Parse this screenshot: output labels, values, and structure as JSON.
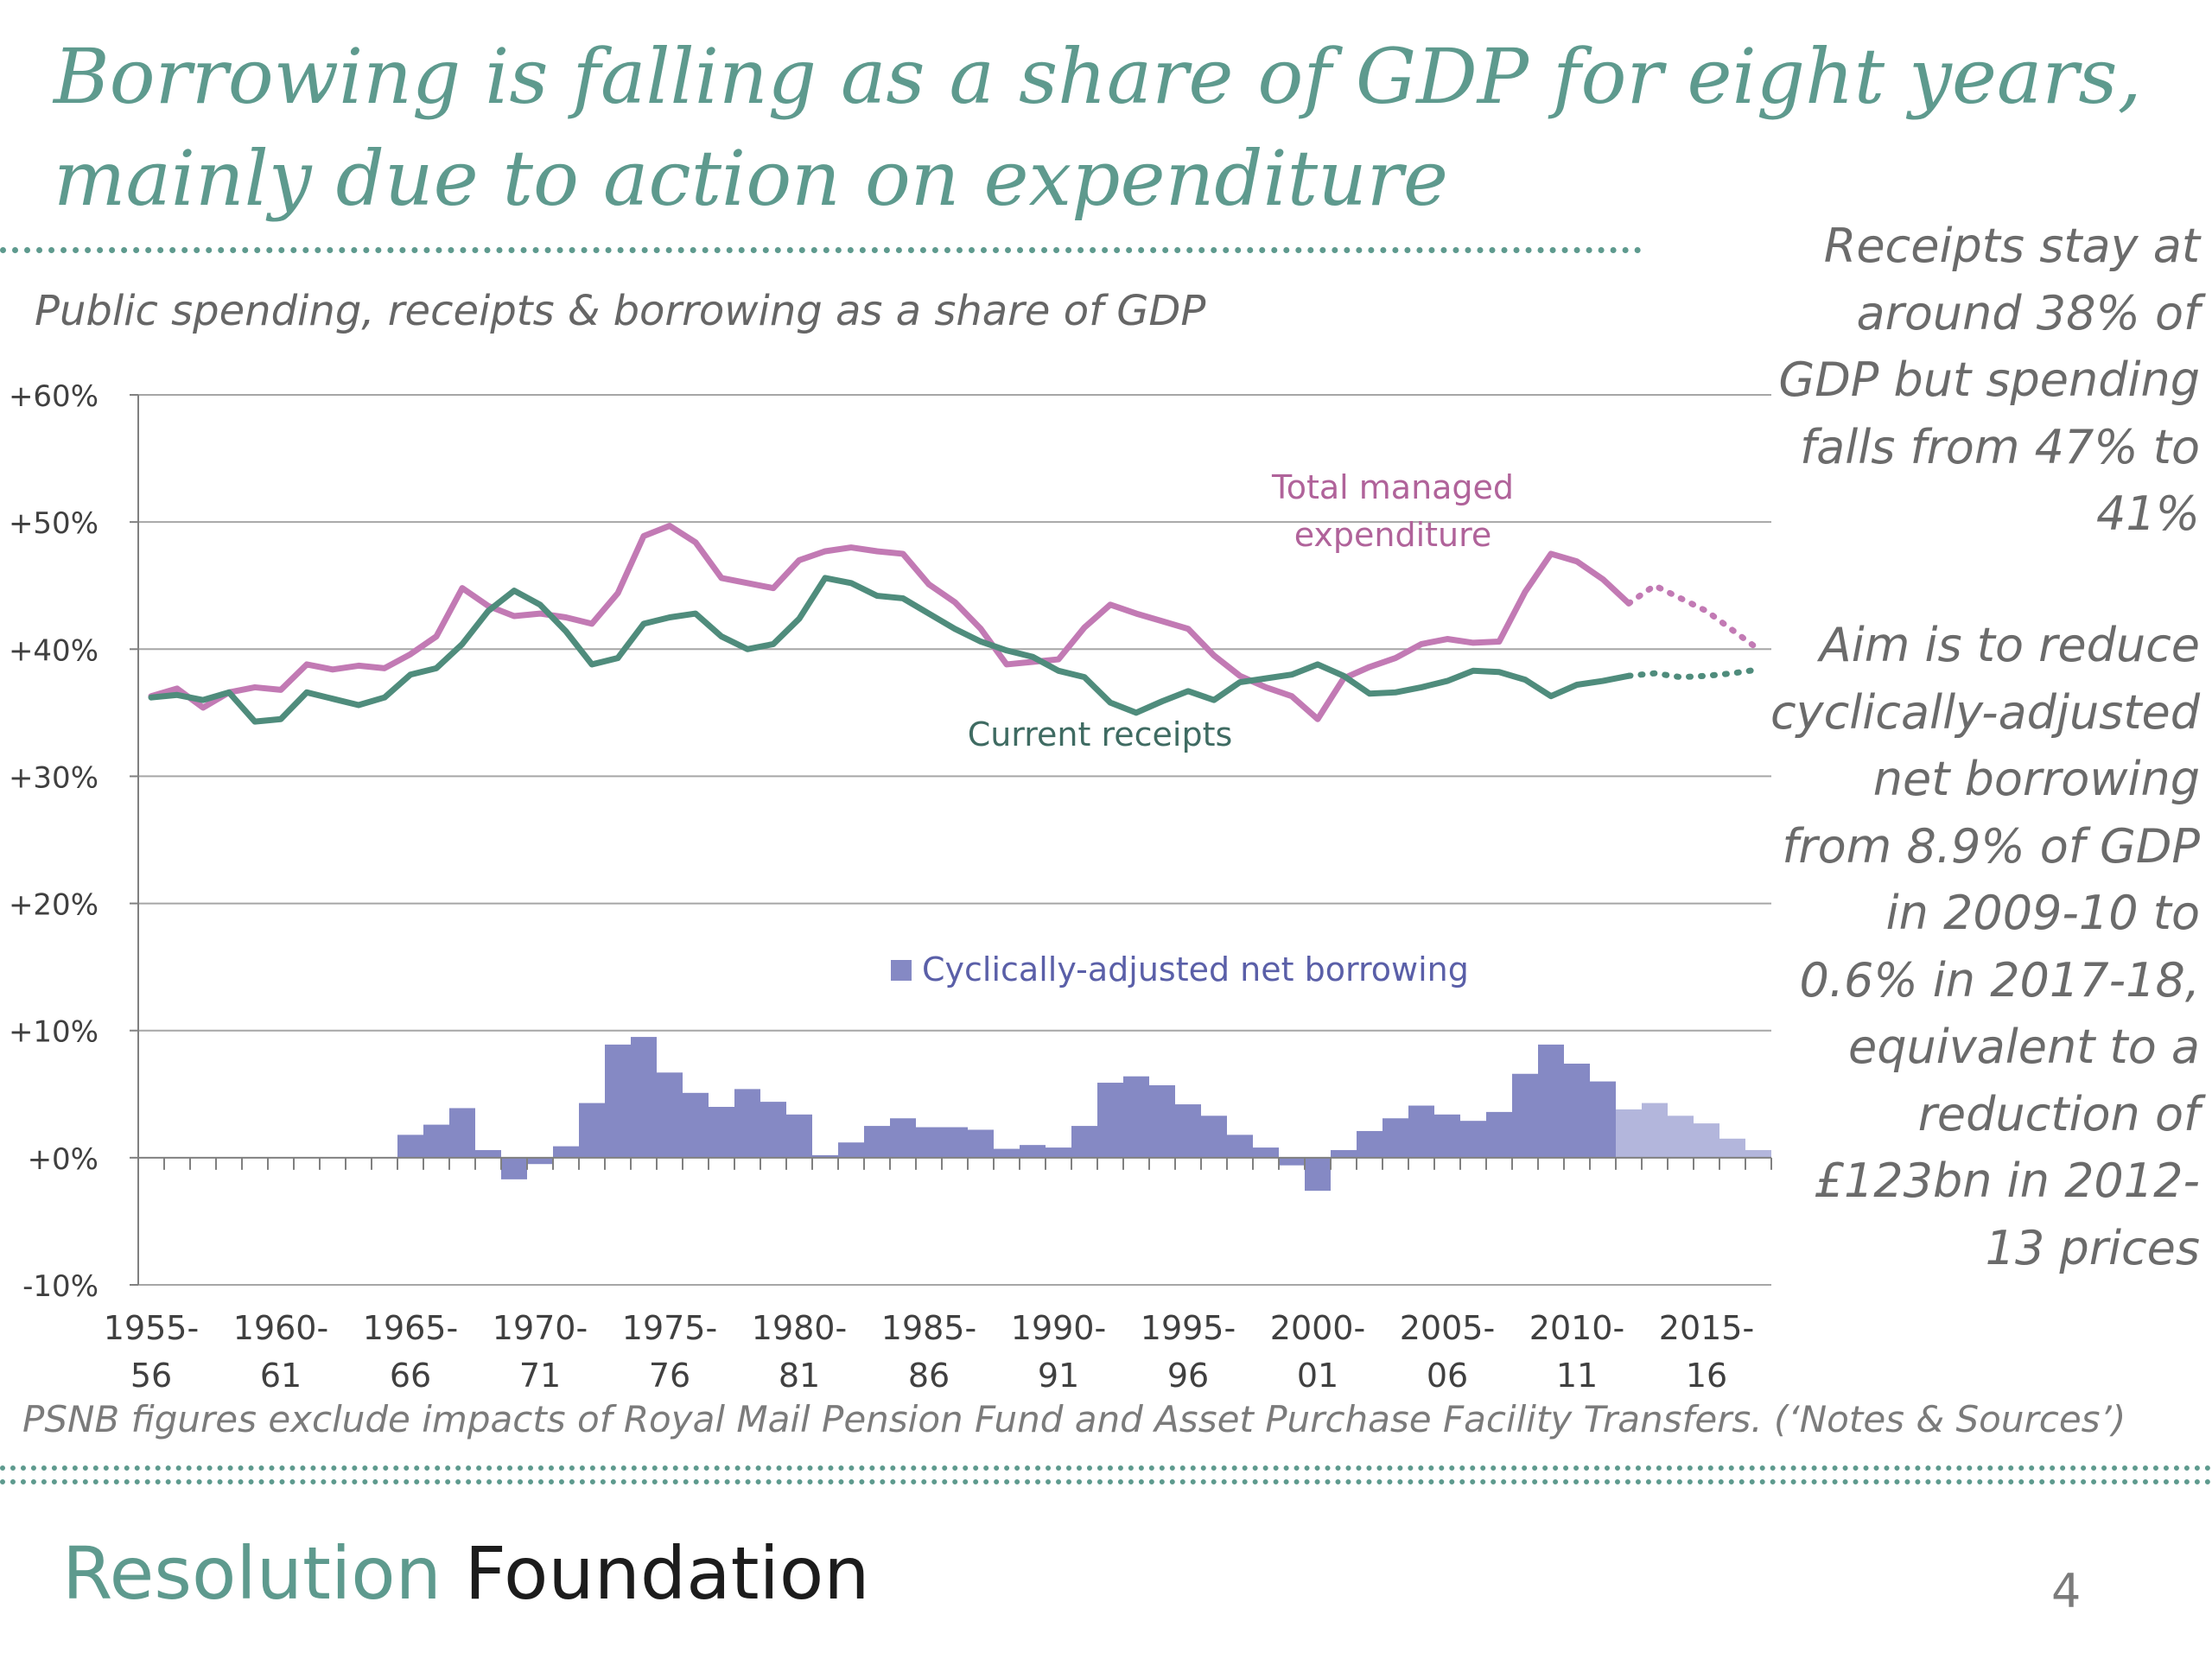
{
  "slide": {
    "title_line1": "Borrowing is falling as a share of GDP for eight years,",
    "title_line2": "mainly due to action on expenditure",
    "side_text_1": "Receipts stay at around 38% of GDP but spending falls from 47% to 41%",
    "side_text_2": "Aim is to reduce cyclically-adjusted net borrowing from 8.9% of GDP in 2009-10 to 0.6% in 2017-18, equivalent to a reduction of £123bn in 2012-13 prices",
    "footnote": "PSNB figures exclude impacts of Royal Mail Pension  Fund and Asset Purchase Facility Transfers. (‘Notes & Sources’)",
    "logo_part1": "Resolution",
    "logo_part2": "Foundation",
    "page_number": "4"
  },
  "chart_data": {
    "type": "line",
    "title": "Public spending, receipts & borrowing as a share of GDP",
    "xlabel": "",
    "ylabel": "",
    "ylim": [
      -10,
      60
    ],
    "yticks": [
      "+60%",
      "+50%",
      "+40%",
      "+30%",
      "+20%",
      "+10%",
      "+0%",
      "-10%"
    ],
    "ytick_values": [
      60,
      50,
      40,
      30,
      20,
      10,
      0,
      -10
    ],
    "x": [
      "1955-56",
      "1956-57",
      "1957-58",
      "1958-59",
      "1959-60",
      "1960-61",
      "1961-62",
      "1962-63",
      "1963-64",
      "1964-65",
      "1965-66",
      "1966-67",
      "1967-68",
      "1968-69",
      "1969-70",
      "1970-71",
      "1971-72",
      "1972-73",
      "1973-74",
      "1974-75",
      "1975-76",
      "1976-77",
      "1977-78",
      "1978-79",
      "1979-80",
      "1980-81",
      "1981-82",
      "1982-83",
      "1983-84",
      "1984-85",
      "1985-86",
      "1986-87",
      "1987-88",
      "1988-89",
      "1989-90",
      "1990-91",
      "1991-92",
      "1992-93",
      "1993-94",
      "1994-95",
      "1995-96",
      "1996-97",
      "1997-98",
      "1998-99",
      "1999-00",
      "2000-01",
      "2001-02",
      "2002-03",
      "2003-04",
      "2004-05",
      "2005-06",
      "2006-07",
      "2007-08",
      "2008-09",
      "2009-10",
      "2010-11",
      "2011-12",
      "2012-13",
      "2013-14",
      "2014-15",
      "2015-16",
      "2016-17",
      "2017-18"
    ],
    "xtick_labels_top": [
      "1955-",
      "1960-",
      "1965-",
      "1970-",
      "1975-",
      "1980-",
      "1985-",
      "1990-",
      "1995-",
      "2000-",
      "2005-",
      "2010-",
      "2015-"
    ],
    "xtick_labels_bottom": [
      "56",
      "61",
      "66",
      "71",
      "76",
      "81",
      "86",
      "91",
      "96",
      "01",
      "06",
      "11",
      "16"
    ],
    "xtick_indices": [
      0,
      5,
      10,
      15,
      20,
      25,
      30,
      35,
      40,
      45,
      50,
      55,
      60
    ],
    "forecast_start_index": 57,
    "grid": true,
    "series": [
      {
        "name": "Total managed expenditure",
        "kind": "line",
        "color": "#c27ab4",
        "values": [
          36.3,
          36.9,
          35.4,
          36.6,
          37.0,
          36.8,
          38.8,
          38.4,
          38.7,
          38.5,
          39.6,
          41.0,
          44.8,
          43.4,
          42.6,
          42.8,
          42.5,
          42.0,
          44.4,
          48.9,
          49.7,
          48.4,
          45.6,
          45.2,
          44.8,
          47.0,
          47.7,
          48.0,
          47.7,
          47.5,
          45.1,
          43.7,
          41.6,
          38.8,
          39.0,
          39.2,
          41.7,
          43.5,
          42.8,
          42.2,
          41.6,
          39.5,
          37.9,
          37.0,
          36.3,
          34.5,
          37.7,
          38.6,
          39.3,
          40.4,
          40.8,
          40.5,
          40.6,
          44.5,
          47.5,
          46.9,
          45.5,
          43.6,
          45.0,
          44.0,
          43.0,
          41.5,
          40.0
        ]
      },
      {
        "name": "Current receipts",
        "kind": "line",
        "color": "#4f8c7c",
        "values": [
          36.2,
          36.4,
          36.0,
          36.6,
          34.3,
          34.5,
          36.6,
          36.1,
          35.6,
          36.2,
          38.0,
          38.5,
          40.4,
          43.0,
          44.6,
          43.5,
          41.4,
          38.8,
          39.3,
          42.0,
          42.5,
          42.8,
          41.0,
          40.0,
          40.4,
          42.4,
          45.6,
          45.2,
          44.2,
          44.0,
          42.8,
          41.6,
          40.6,
          39.9,
          39.4,
          38.3,
          37.8,
          35.8,
          35.0,
          35.9,
          36.7,
          36.0,
          37.4,
          37.7,
          38.0,
          38.8,
          37.9,
          36.5,
          36.6,
          37.0,
          37.5,
          38.3,
          38.2,
          37.6,
          36.3,
          37.2,
          37.5,
          37.9,
          38.1,
          37.8,
          37.9,
          38.1,
          38.4
        ]
      },
      {
        "name": "Cyclically-adjusted net borrowing",
        "kind": "bar",
        "color": "#8589c4",
        "forecast_color": "#b3b6dc",
        "values": [
          0,
          0,
          0,
          0,
          0,
          0,
          0,
          0,
          0,
          0,
          1.8,
          2.6,
          3.9,
          0.6,
          -1.7,
          -0.5,
          0.9,
          4.3,
          8.9,
          9.5,
          6.7,
          5.1,
          4.0,
          5.4,
          4.4,
          3.4,
          0.2,
          1.2,
          2.5,
          3.1,
          2.4,
          2.4,
          2.2,
          0.7,
          1.0,
          0.8,
          2.5,
          5.9,
          6.4,
          5.7,
          4.2,
          3.3,
          1.8,
          0.8,
          -0.6,
          -2.6,
          0.6,
          2.1,
          3.1,
          4.1,
          3.4,
          2.9,
          3.6,
          6.6,
          8.9,
          7.4,
          6.0,
          3.8,
          4.3,
          3.3,
          2.7,
          1.5,
          0.6
        ]
      }
    ],
    "annotations": {
      "tme_label_line1": "Total managed",
      "tme_label_line2": "expenditure",
      "receipts_label": "Current receipts",
      "borrowing_legend": "Cyclically-adjusted net borrowing"
    }
  }
}
